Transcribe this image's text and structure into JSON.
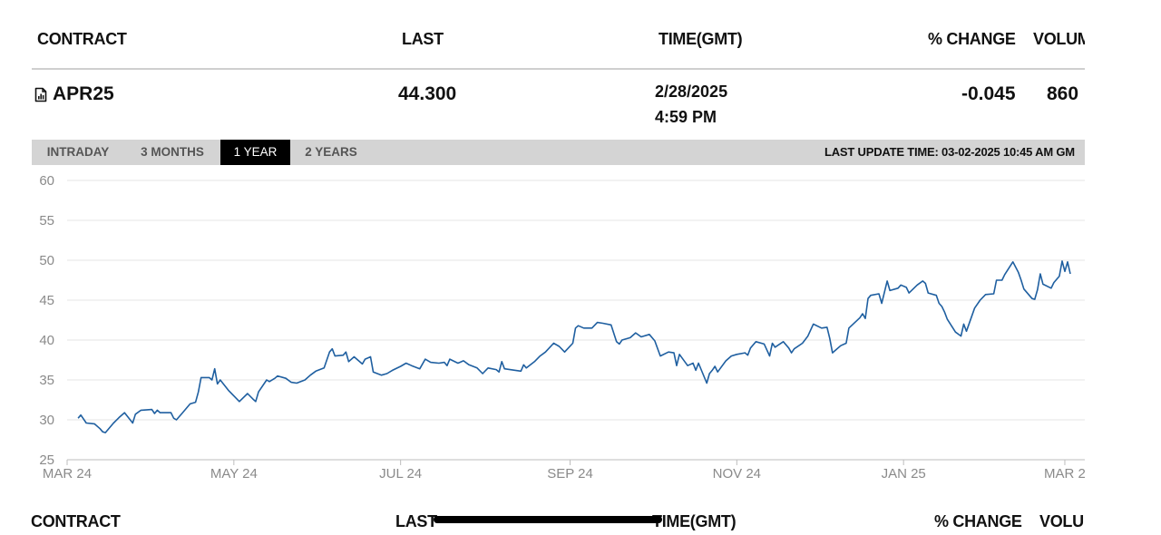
{
  "table": {
    "headers": {
      "contract": "CONTRACT",
      "last": "LAST",
      "time": "TIME(GMT)",
      "change": "% CHANGE",
      "volume": "VOLUM"
    },
    "row": {
      "contract": "APR25",
      "contract_icon": "chart-document-icon",
      "last": "44.300",
      "date": "2/28/2025",
      "time": "4:59 PM",
      "change": "-0.045",
      "volume": "860"
    }
  },
  "tabs": [
    {
      "label": "INTRADAY",
      "active": false
    },
    {
      "label": "3 MONTHS",
      "active": false
    },
    {
      "label": "1 YEAR",
      "active": true
    },
    {
      "label": "2 YEARS",
      "active": false
    }
  ],
  "last_update": "LAST UPDATE TIME: 03-02-2025 10:45 AM GM",
  "footer_headers": {
    "contract": "CONTRACT",
    "last": "LAST",
    "time": "TIME(GMT)",
    "change": "% CHANGE",
    "volume": "VOLU"
  },
  "colors": {
    "line": "#1f5fa0",
    "gridline": "#e6e6e6",
    "tab_bar": "#d4d4d4",
    "active_tab": "#000000"
  },
  "chart_data": {
    "type": "line",
    "title": "",
    "xlabel": "",
    "ylabel": "",
    "xlim": [
      "2024-03-01",
      "2025-03-03"
    ],
    "ylim": [
      25,
      60
    ],
    "yticks": [
      25,
      30,
      35,
      40,
      45,
      50,
      55,
      60
    ],
    "xticks": [
      {
        "date": "2024-03-01",
        "label": "MAR 24"
      },
      {
        "date": "2024-05-01",
        "label": "MAY 24"
      },
      {
        "date": "2024-07-01",
        "label": "JUL 24"
      },
      {
        "date": "2024-09-01",
        "label": "SEP 24"
      },
      {
        "date": "2024-11-01",
        "label": "NOV 24"
      },
      {
        "date": "2025-01-01",
        "label": "JAN 25"
      },
      {
        "date": "2025-03-01",
        "label": "MAR 2"
      }
    ],
    "grid": true,
    "series": [
      {
        "values": [
          [
            "2024-03-05",
            30.2
          ],
          [
            "2024-03-06",
            30.6
          ],
          [
            "2024-03-08",
            29.6
          ],
          [
            "2024-03-11",
            29.5
          ],
          [
            "2024-03-13",
            28.9
          ],
          [
            "2024-03-14",
            28.5
          ],
          [
            "2024-03-15",
            28.4
          ],
          [
            "2024-03-18",
            29.6
          ],
          [
            "2024-03-20",
            30.3
          ],
          [
            "2024-03-22",
            30.9
          ],
          [
            "2024-03-25",
            29.6
          ],
          [
            "2024-03-26",
            30.7
          ],
          [
            "2024-03-28",
            31.2
          ],
          [
            "2024-04-01",
            31.3
          ],
          [
            "2024-04-02",
            30.8
          ],
          [
            "2024-04-03",
            31.2
          ],
          [
            "2024-04-04",
            30.9
          ],
          [
            "2024-04-08",
            30.9
          ],
          [
            "2024-04-09",
            30.2
          ],
          [
            "2024-04-10",
            30.0
          ],
          [
            "2024-04-12",
            30.8
          ],
          [
            "2024-04-15",
            32.0
          ],
          [
            "2024-04-17",
            32.2
          ],
          [
            "2024-04-18",
            33.5
          ],
          [
            "2024-04-19",
            35.3
          ],
          [
            "2024-04-22",
            35.3
          ],
          [
            "2024-04-23",
            35.0
          ],
          [
            "2024-04-24",
            36.4
          ],
          [
            "2024-04-25",
            34.5
          ],
          [
            "2024-04-26",
            35.0
          ],
          [
            "2024-04-29",
            33.7
          ],
          [
            "2024-05-01",
            33.0
          ],
          [
            "2024-05-03",
            32.3
          ],
          [
            "2024-05-06",
            33.3
          ],
          [
            "2024-05-08",
            32.6
          ],
          [
            "2024-05-09",
            32.3
          ],
          [
            "2024-05-10",
            33.5
          ],
          [
            "2024-05-13",
            35.0
          ],
          [
            "2024-05-14",
            34.8
          ],
          [
            "2024-05-16",
            35.2
          ],
          [
            "2024-05-17",
            35.5
          ],
          [
            "2024-05-20",
            35.2
          ],
          [
            "2024-05-22",
            34.7
          ],
          [
            "2024-05-24",
            34.6
          ],
          [
            "2024-05-27",
            35.0
          ],
          [
            "2024-05-29",
            35.6
          ],
          [
            "2024-05-31",
            36.1
          ],
          [
            "2024-06-03",
            36.5
          ],
          [
            "2024-06-04",
            37.5
          ],
          [
            "2024-06-05",
            38.5
          ],
          [
            "2024-06-06",
            38.9
          ],
          [
            "2024-06-07",
            38.0
          ],
          [
            "2024-06-10",
            38.1
          ],
          [
            "2024-06-11",
            38.5
          ],
          [
            "2024-06-12",
            37.3
          ],
          [
            "2024-06-14",
            37.9
          ],
          [
            "2024-06-17",
            37.0
          ],
          [
            "2024-06-18",
            37.6
          ],
          [
            "2024-06-20",
            37.9
          ],
          [
            "2024-06-21",
            36.0
          ],
          [
            "2024-06-24",
            35.6
          ],
          [
            "2024-06-26",
            35.8
          ],
          [
            "2024-06-28",
            36.2
          ],
          [
            "2024-07-01",
            36.7
          ],
          [
            "2024-07-03",
            37.1
          ],
          [
            "2024-07-05",
            36.8
          ],
          [
            "2024-07-08",
            36.4
          ],
          [
            "2024-07-10",
            37.6
          ],
          [
            "2024-07-12",
            37.2
          ],
          [
            "2024-07-15",
            37.1
          ],
          [
            "2024-07-17",
            37.2
          ],
          [
            "2024-07-18",
            36.8
          ],
          [
            "2024-07-19",
            37.6
          ],
          [
            "2024-07-22",
            37.1
          ],
          [
            "2024-07-24",
            37.4
          ],
          [
            "2024-07-26",
            36.9
          ],
          [
            "2024-07-29",
            36.5
          ],
          [
            "2024-07-31",
            35.8
          ],
          [
            "2024-08-02",
            36.5
          ],
          [
            "2024-08-05",
            36.3
          ],
          [
            "2024-08-06",
            36.0
          ],
          [
            "2024-08-07",
            37.3
          ],
          [
            "2024-08-08",
            36.4
          ],
          [
            "2024-08-12",
            36.2
          ],
          [
            "2024-08-14",
            36.1
          ],
          [
            "2024-08-15",
            36.9
          ],
          [
            "2024-08-16",
            36.5
          ],
          [
            "2024-08-19",
            37.3
          ],
          [
            "2024-08-21",
            38.0
          ],
          [
            "2024-08-23",
            38.5
          ],
          [
            "2024-08-26",
            39.6
          ],
          [
            "2024-08-28",
            39.2
          ],
          [
            "2024-08-30",
            38.5
          ],
          [
            "2024-09-02",
            39.6
          ],
          [
            "2024-09-03",
            41.5
          ],
          [
            "2024-09-04",
            41.8
          ],
          [
            "2024-09-06",
            41.5
          ],
          [
            "2024-09-09",
            41.5
          ],
          [
            "2024-09-11",
            42.2
          ],
          [
            "2024-09-13",
            42.1
          ],
          [
            "2024-09-16",
            41.9
          ],
          [
            "2024-09-18",
            39.8
          ],
          [
            "2024-09-19",
            39.5
          ],
          [
            "2024-09-20",
            40.0
          ],
          [
            "2024-09-23",
            40.3
          ],
          [
            "2024-09-25",
            40.9
          ],
          [
            "2024-09-27",
            40.4
          ],
          [
            "2024-09-30",
            40.7
          ],
          [
            "2024-10-02",
            39.9
          ],
          [
            "2024-10-04",
            38.0
          ],
          [
            "2024-10-07",
            38.5
          ],
          [
            "2024-10-09",
            38.4
          ],
          [
            "2024-10-10",
            36.8
          ],
          [
            "2024-10-11",
            38.2
          ],
          [
            "2024-10-14",
            36.8
          ],
          [
            "2024-10-16",
            37.1
          ],
          [
            "2024-10-17",
            36.2
          ],
          [
            "2024-10-18",
            37.1
          ],
          [
            "2024-10-21",
            34.6
          ],
          [
            "2024-10-22",
            35.8
          ],
          [
            "2024-10-23",
            36.2
          ],
          [
            "2024-10-24",
            36.7
          ],
          [
            "2024-10-25",
            36.0
          ],
          [
            "2024-10-28",
            37.4
          ],
          [
            "2024-10-30",
            38.0
          ],
          [
            "2024-11-01",
            38.2
          ],
          [
            "2024-11-04",
            38.4
          ],
          [
            "2024-11-05",
            38.1
          ],
          [
            "2024-11-06",
            39.0
          ],
          [
            "2024-11-08",
            39.8
          ],
          [
            "2024-11-11",
            39.5
          ],
          [
            "2024-11-13",
            38.0
          ],
          [
            "2024-11-14",
            39.6
          ],
          [
            "2024-11-15",
            39.1
          ],
          [
            "2024-11-18",
            39.8
          ],
          [
            "2024-11-20",
            39.0
          ],
          [
            "2024-11-21",
            38.4
          ],
          [
            "2024-11-22",
            38.9
          ],
          [
            "2024-11-25",
            39.6
          ],
          [
            "2024-11-27",
            40.5
          ],
          [
            "2024-11-29",
            42.0
          ],
          [
            "2024-12-02",
            41.5
          ],
          [
            "2024-12-04",
            41.6
          ],
          [
            "2024-12-05",
            40.2
          ],
          [
            "2024-12-06",
            38.4
          ],
          [
            "2024-12-09",
            39.3
          ],
          [
            "2024-12-11",
            39.6
          ],
          [
            "2024-12-12",
            41.5
          ],
          [
            "2024-12-16",
            42.8
          ],
          [
            "2024-12-17",
            43.3
          ],
          [
            "2024-12-18",
            42.7
          ],
          [
            "2024-12-19",
            45.2
          ],
          [
            "2024-12-20",
            45.6
          ],
          [
            "2024-12-23",
            45.8
          ],
          [
            "2024-12-24",
            44.6
          ],
          [
            "2024-12-26",
            47.4
          ],
          [
            "2024-12-27",
            46.2
          ],
          [
            "2024-12-30",
            46.5
          ],
          [
            "2024-12-31",
            46.9
          ],
          [
            "2025-01-02",
            46.6
          ],
          [
            "2025-01-03",
            45.9
          ],
          [
            "2025-01-06",
            46.9
          ],
          [
            "2025-01-08",
            47.4
          ],
          [
            "2025-01-09",
            47.1
          ],
          [
            "2025-01-10",
            45.9
          ],
          [
            "2025-01-13",
            45.6
          ],
          [
            "2025-01-14",
            44.6
          ],
          [
            "2025-01-15",
            44.2
          ],
          [
            "2025-01-16",
            43.5
          ],
          [
            "2025-01-17",
            42.6
          ],
          [
            "2025-01-20",
            41.0
          ],
          [
            "2025-01-22",
            40.5
          ],
          [
            "2025-01-23",
            42.0
          ],
          [
            "2025-01-24",
            41.1
          ],
          [
            "2025-01-27",
            44.0
          ],
          [
            "2025-01-29",
            45.0
          ],
          [
            "2025-01-31",
            45.7
          ],
          [
            "2025-02-03",
            45.8
          ],
          [
            "2025-02-04",
            47.5
          ],
          [
            "2025-02-06",
            47.5
          ],
          [
            "2025-02-07",
            48.2
          ],
          [
            "2025-02-10",
            49.8
          ],
          [
            "2025-02-12",
            48.5
          ],
          [
            "2025-02-13",
            47.5
          ],
          [
            "2025-02-14",
            46.4
          ],
          [
            "2025-02-17",
            45.2
          ],
          [
            "2025-02-18",
            45.1
          ],
          [
            "2025-02-19",
            46.3
          ],
          [
            "2025-02-20",
            48.3
          ],
          [
            "2025-02-21",
            47.0
          ],
          [
            "2025-02-24",
            46.5
          ],
          [
            "2025-02-25",
            47.2
          ],
          [
            "2025-02-26",
            47.6
          ],
          [
            "2025-02-27",
            48.0
          ],
          [
            "2025-02-28",
            49.9
          ],
          [
            "2025-03-01",
            48.6
          ],
          [
            "2025-03-02",
            49.8
          ],
          [
            "2025-03-03",
            48.3
          ]
        ]
      }
    ]
  }
}
